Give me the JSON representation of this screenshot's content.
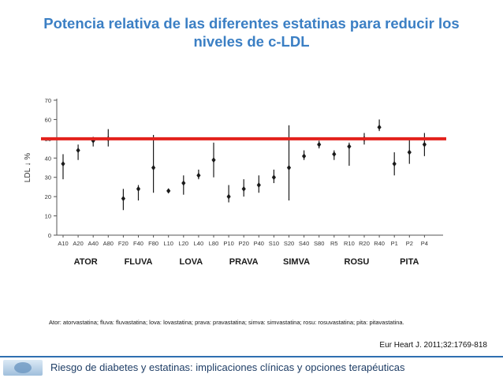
{
  "slide": {
    "title_line1": "Potencia relativa de las diferentes estatinas para reducir los",
    "title_line2": "niveles de c-LDL",
    "abbreviations": "Ator: atorvastatina; fluva: fluvastatina; lova: lovastatina; prava: pravastatina; simva: simvastatina; rosu: rosuvastatina; pita: pitavastatina.",
    "citation": "Eur Heart J. 2011;32:1769-818",
    "footer": "Riesgo de diabetes y estatinas: implicaciones clínicas y opciones terapéuticas"
  },
  "colors": {
    "title": "#3b7fc4",
    "reference_line": "#e3211c",
    "markers": "#1a1a1a",
    "footer_rule": "#2e6fb0",
    "footer_text": "#1f3e66"
  },
  "chart_data": {
    "type": "scatter",
    "ylabel": "LDL ↓ %",
    "ylim": [
      0,
      70
    ],
    "yticks": [
      0,
      10,
      20,
      30,
      40,
      50,
      60,
      70
    ],
    "categories": [
      "A10",
      "A20",
      "A40",
      "A80",
      "F20",
      "F40",
      "F80",
      "L10",
      "L20",
      "L40",
      "L80",
      "P10",
      "P20",
      "P40",
      "S10",
      "S20",
      "S40",
      "S80",
      "R5",
      "R10",
      "R20",
      "R40",
      "P1",
      "P2",
      "P4"
    ],
    "values": [
      37,
      44,
      49,
      50,
      19,
      24,
      35,
      23,
      27,
      31,
      39,
      20,
      24,
      26,
      30,
      35,
      41,
      47,
      42,
      46,
      50,
      56,
      37,
      43,
      47
    ],
    "error_low": [
      29,
      39,
      46,
      46,
      13,
      18,
      22,
      22,
      21,
      29,
      30,
      17,
      20,
      22,
      27,
      18,
      39,
      45,
      39,
      36,
      47,
      54,
      31,
      37,
      41
    ],
    "error_high": [
      42,
      47,
      51,
      55,
      24,
      26,
      52,
      24,
      31,
      34,
      48,
      26,
      29,
      31,
      34,
      57,
      44,
      49,
      44,
      48,
      53,
      60,
      43,
      50,
      53
    ],
    "groups": [
      {
        "label": "ATOR",
        "members": [
          "A10",
          "A20",
          "A40",
          "A80"
        ]
      },
      {
        "label": "FLUVA",
        "members": [
          "F20",
          "F40",
          "F80"
        ]
      },
      {
        "label": "LOVA",
        "members": [
          "L10",
          "L20",
          "L40",
          "L80"
        ]
      },
      {
        "label": "PRAVA",
        "members": [
          "P10",
          "P20",
          "P40"
        ]
      },
      {
        "label": "SIMVA",
        "members": [
          "S10",
          "S20",
          "S40",
          "S80"
        ]
      },
      {
        "label": "ROSU",
        "members": [
          "R5",
          "R10",
          "R20",
          "R40"
        ]
      },
      {
        "label": "PITA",
        "members": [
          "P1",
          "P2",
          "P4"
        ]
      }
    ],
    "reference_line": 50,
    "grid": false
  }
}
